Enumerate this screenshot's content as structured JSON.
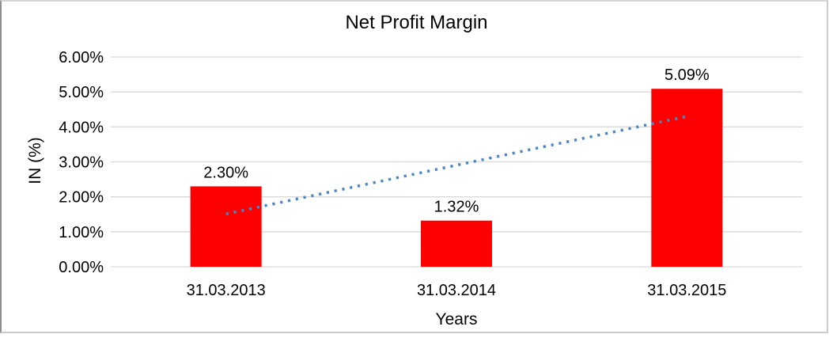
{
  "chart_data": {
    "type": "bar",
    "title": "Net Profit Margin",
    "xlabel": "Years",
    "ylabel": "IN (%)",
    "categories": [
      "31.03.2013",
      "31.03.2014",
      "31.03.2015"
    ],
    "values": [
      2.3,
      1.32,
      5.09
    ],
    "data_labels": [
      "2.30%",
      "1.32%",
      "5.09%"
    ],
    "y_ticks": [
      "0.00%",
      "1.00%",
      "2.00%",
      "3.00%",
      "4.00%",
      "5.00%",
      "6.00%"
    ],
    "ylim": [
      0,
      6
    ],
    "grid": true,
    "legend": "none",
    "colors": {
      "bar": "#ff0000",
      "gridline": "#d9d9d9",
      "trendline": "#4a86c8",
      "text": "#000000"
    },
    "trendline": {
      "type": "linear",
      "style": "dotted",
      "start_value": 1.51,
      "end_value": 4.3
    }
  }
}
